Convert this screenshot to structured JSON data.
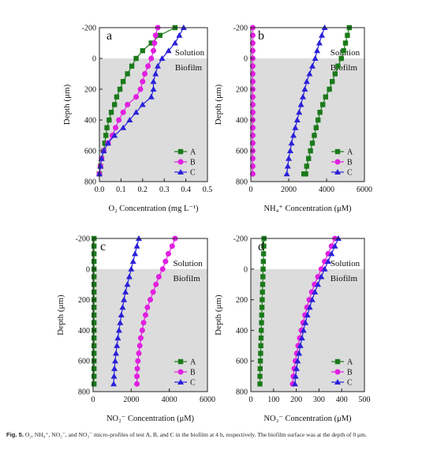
{
  "caption": {
    "label": "Fig. 5.",
    "text": "O₂, NH₄⁺, NO₂⁻, and NO₃⁻ micro-profiles of test A, B, and C in the biofilm at 4 h, respectively. The biofilm surface was at the depth of 0 μm."
  },
  "chart_data": [
    {
      "type": "line",
      "panel_label": "a",
      "xlabel": "O₂ Concentration (mg L⁻¹)",
      "ylabel": "Depth (μm)",
      "xlim": [
        0,
        0.5
      ],
      "xticks": [
        "0.0",
        "0.1",
        "0.2",
        "0.3",
        "0.4",
        "0.5"
      ],
      "ylim": [
        -200,
        800
      ],
      "yticks": [
        "-200",
        "0",
        "200",
        "400",
        "600",
        "800"
      ],
      "zones": {
        "solution": "Solution",
        "biofilm": "Biofilm"
      },
      "legend_position": "bottom-right",
      "series": [
        {
          "name": "A",
          "color": "#1a7a1a",
          "marker": "square",
          "x": [
            0.35,
            0.28,
            0.24,
            0.2,
            0.17,
            0.15,
            0.13,
            0.11,
            0.095,
            0.08,
            0.07,
            0.055,
            0.045,
            0.035,
            0.03,
            0.025,
            0.02,
            0.01,
            0.005,
            0.0,
            0.0
          ],
          "y": [
            -200,
            -150,
            -100,
            -50,
            0,
            50,
            100,
            150,
            200,
            250,
            300,
            350,
            400,
            450,
            500,
            550,
            600,
            650,
            700,
            750,
            750
          ]
        },
        {
          "name": "B",
          "color": "#e020e0",
          "marker": "circle",
          "x": [
            0.27,
            0.26,
            0.255,
            0.25,
            0.24,
            0.225,
            0.21,
            0.2,
            0.19,
            0.17,
            0.13,
            0.11,
            0.09,
            0.075,
            0.06,
            0.04,
            0.02,
            0.01,
            0.005,
            0.0
          ],
          "y": [
            -200,
            -150,
            -100,
            -50,
            0,
            50,
            100,
            150,
            200,
            250,
            300,
            350,
            400,
            450,
            500,
            550,
            600,
            650,
            700,
            750
          ]
        },
        {
          "name": "C",
          "color": "#2a20d8",
          "marker": "triangle",
          "x": [
            0.39,
            0.37,
            0.35,
            0.32,
            0.29,
            0.27,
            0.26,
            0.25,
            0.25,
            0.24,
            0.2,
            0.17,
            0.14,
            0.11,
            0.07,
            0.04,
            0.02,
            0.01,
            0.005,
            0.0
          ],
          "y": [
            -200,
            -150,
            -100,
            -50,
            0,
            50,
            100,
            150,
            200,
            250,
            300,
            350,
            400,
            450,
            500,
            550,
            600,
            650,
            700,
            750
          ]
        }
      ]
    },
    {
      "type": "line",
      "panel_label": "b",
      "xlabel": "NH₄⁺ Concentration (μM)",
      "ylabel": "Depth (μm)",
      "xlim": [
        0,
        6000
      ],
      "xticks": [
        "0",
        "2000",
        "4000",
        "6000"
      ],
      "ylim": [
        -200,
        800
      ],
      "yticks": [
        "-200",
        "0",
        "200",
        "400",
        "600",
        "800"
      ],
      "zones": {
        "solution": "Solution",
        "biofilm": "Biofilm"
      },
      "legend_position": "bottom-right",
      "series": [
        {
          "name": "A",
          "color": "#1a7a1a",
          "marker": "square",
          "x": [
            5200,
            5100,
            5000,
            4900,
            4780,
            4600,
            4450,
            4300,
            4150,
            3950,
            3800,
            3650,
            3550,
            3450,
            3350,
            3250,
            3150,
            3050,
            2950,
            2900,
            2850,
            2800
          ],
          "y": [
            -200,
            -150,
            -100,
            -50,
            0,
            50,
            100,
            150,
            200,
            250,
            300,
            350,
            400,
            450,
            500,
            550,
            600,
            650,
            700,
            750,
            750,
            750
          ]
        },
        {
          "name": "B",
          "color": "#e020e0",
          "marker": "circle",
          "x": [
            100,
            100,
            100,
            100,
            100,
            100,
            100,
            100,
            100,
            100,
            100,
            100,
            100,
            100,
            100,
            100,
            100,
            100,
            100,
            100
          ],
          "y": [
            -200,
            -150,
            -100,
            -50,
            0,
            50,
            100,
            150,
            200,
            250,
            300,
            350,
            400,
            450,
            500,
            550,
            600,
            650,
            700,
            750
          ]
        },
        {
          "name": "C",
          "color": "#2a20d8",
          "marker": "triangle",
          "x": [
            3900,
            3750,
            3620,
            3500,
            3400,
            3250,
            3100,
            2950,
            2850,
            2750,
            2650,
            2550,
            2450,
            2350,
            2250,
            2150,
            2080,
            2000,
            1950,
            1900
          ],
          "y": [
            -200,
            -150,
            -100,
            -50,
            0,
            50,
            100,
            150,
            200,
            250,
            300,
            350,
            400,
            450,
            500,
            550,
            600,
            650,
            700,
            750
          ]
        }
      ]
    },
    {
      "type": "line",
      "panel_label": "c",
      "xlabel": "NO₂⁻ Concentration (μM)",
      "ylabel": "Depth (μm)",
      "xlim": [
        0,
        6000
      ],
      "xticks": [
        "0",
        "2000",
        "4000",
        "6000"
      ],
      "ylim": [
        -200,
        800
      ],
      "yticks": [
        "-200",
        "0",
        "200",
        "400",
        "600",
        "800"
      ],
      "zones": {
        "solution": "Solution",
        "biofilm": "Biofilm"
      },
      "legend_position": "bottom-right",
      "series": [
        {
          "name": "A",
          "color": "#1a7a1a",
          "marker": "square",
          "x": [
            50,
            50,
            50,
            50,
            50,
            50,
            50,
            50,
            50,
            50,
            50,
            50,
            50,
            50,
            50,
            50,
            50,
            50,
            50,
            50
          ],
          "y": [
            -200,
            -150,
            -100,
            -50,
            0,
            50,
            100,
            150,
            200,
            250,
            300,
            350,
            400,
            450,
            500,
            550,
            600,
            650,
            700,
            750
          ]
        },
        {
          "name": "B",
          "color": "#e020e0",
          "marker": "circle",
          "x": [
            4300,
            4150,
            3950,
            3800,
            3650,
            3450,
            3300,
            3150,
            3000,
            2850,
            2750,
            2650,
            2580,
            2500,
            2450,
            2400,
            2350,
            2320,
            2300,
            2300
          ],
          "y": [
            -200,
            -150,
            -100,
            -50,
            0,
            50,
            100,
            150,
            200,
            250,
            300,
            350,
            400,
            450,
            500,
            550,
            600,
            650,
            700,
            750
          ]
        },
        {
          "name": "C",
          "color": "#2a20d8",
          "marker": "triangle",
          "x": [
            2400,
            2300,
            2200,
            2100,
            2000,
            1900,
            1800,
            1700,
            1620,
            1550,
            1480,
            1420,
            1360,
            1300,
            1250,
            1200,
            1160,
            1120,
            1100,
            1080
          ],
          "y": [
            -200,
            -150,
            -100,
            -50,
            0,
            50,
            100,
            150,
            200,
            250,
            300,
            350,
            400,
            450,
            500,
            550,
            600,
            650,
            700,
            750
          ]
        }
      ]
    },
    {
      "type": "line",
      "panel_label": "d",
      "xlabel": "NO₃⁻ Concentration (μM)",
      "ylabel": "Depth (μm)",
      "xlim": [
        0,
        500
      ],
      "xticks": [
        "0",
        "100",
        "200",
        "300",
        "400",
        "500"
      ],
      "ylim": [
        -200,
        800
      ],
      "yticks": [
        "-200",
        "0",
        "200",
        "400",
        "600",
        "800"
      ],
      "zones": {
        "solution": "Solution",
        "biofilm": "Biofilm"
      },
      "legend_position": "bottom-right",
      "series": [
        {
          "name": "A",
          "color": "#1a7a1a",
          "marker": "square",
          "x": [
            58,
            57,
            56,
            55,
            54,
            53,
            52,
            51,
            50,
            49,
            48,
            47,
            46,
            45,
            44,
            43,
            42,
            41,
            40,
            40
          ],
          "y": [
            -200,
            -150,
            -100,
            -50,
            0,
            50,
            100,
            150,
            200,
            250,
            300,
            350,
            400,
            450,
            500,
            550,
            600,
            650,
            700,
            750
          ]
        },
        {
          "name": "B",
          "color": "#e020e0",
          "marker": "circle",
          "x": [
            370,
            355,
            340,
            325,
            310,
            295,
            280,
            268,
            257,
            247,
            238,
            230,
            222,
            215,
            208,
            202,
            196,
            191,
            187,
            184
          ],
          "y": [
            -200,
            -150,
            -100,
            -50,
            0,
            50,
            100,
            150,
            200,
            250,
            300,
            350,
            400,
            450,
            500,
            550,
            600,
            650,
            700,
            750
          ]
        },
        {
          "name": "C",
          "color": "#2a20d8",
          "marker": "triangle",
          "x": [
            385,
            370,
            355,
            340,
            325,
            310,
            295,
            282,
            270,
            259,
            249,
            240,
            232,
            225,
            218,
            212,
            206,
            201,
            197,
            194
          ],
          "y": [
            -200,
            -150,
            -100,
            -50,
            0,
            50,
            100,
            150,
            200,
            250,
            300,
            350,
            400,
            450,
            500,
            550,
            600,
            650,
            700,
            750
          ]
        }
      ]
    }
  ]
}
